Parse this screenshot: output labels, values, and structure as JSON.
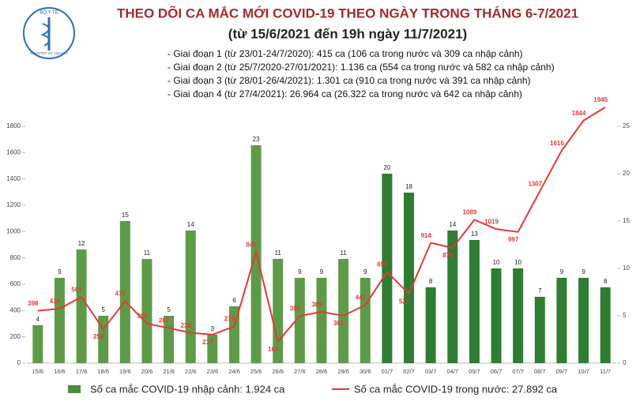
{
  "logo": {
    "top": "BỘ Y TẾ",
    "bottom": "MINISTRY OF HEALTH"
  },
  "chart_data": {
    "type": "bar-line",
    "title": "THEO DÕI CA MẮC MỚI COVID-19 THEO NGÀY TRONG THÁNG 6-7/2021",
    "subtitle": "(từ 15/6/2021 đến 19h ngày 11/7/2021)",
    "notes": [
      "- Giai đoạn 1 (từ 23/01-24/7/2020): 415 ca (106 ca trong nước và 309 ca nhập cảnh)",
      "- Giai đoạn 2 (từ 25/7/2020-27/01/2021): 1.136 ca (554 ca trong nước và 582 ca nhập cảnh)",
      "- Giai đoạn 3 (từ 28/01-26/4/2021): 1.301 ca (910 ca trong nước và 391 ca nhập cảnh)",
      "- Giai đoạn 4 (từ 27/4/2021): 26.964 ca (26.322 ca trong nước và 642 ca nhập cảnh)"
    ],
    "categories": [
      "15/6",
      "16/6",
      "17/6",
      "18/6",
      "19/6",
      "20/6",
      "21/6",
      "22/6",
      "23/6",
      "24/6",
      "25/6",
      "26/6",
      "27/6",
      "28/6",
      "29/6",
      "30/6",
      "01/7",
      "02/7",
      "03/7",
      "04/7",
      "05/7",
      "06/7",
      "07/7",
      "08/7",
      "09/7",
      "10/7",
      "11/7"
    ],
    "series": [
      {
        "name": "Số ca mắc COVID-19 nhập cảnh: 1.924 ca",
        "type": "bar",
        "axis": "y2",
        "color": "#4e8f3a",
        "colors": [
          "#5d9b49",
          "#5d9b49",
          "#5d9b49",
          "#5d9b49",
          "#5d9b49",
          "#5d9b49",
          "#5d9b49",
          "#5d9b49",
          "#5d9b49",
          "#5d9b49",
          "#5d9b49",
          "#5d9b49",
          "#5d9b49",
          "#5d9b49",
          "#5d9b49",
          "#5d9b49",
          "#2e7d32",
          "#2e7d32",
          "#2e7d32",
          "#2e7d32",
          "#2e7d32",
          "#2e7d32",
          "#2e7d32",
          "#2e7d32",
          "#2e7d32",
          "#2e7d32",
          "#2e7d32"
        ],
        "values": [
          4,
          9,
          12,
          5,
          15,
          11,
          5,
          14,
          3,
          6,
          23,
          11,
          9,
          9,
          11,
          9,
          20,
          18,
          8,
          14,
          13,
          10,
          10,
          7,
          9,
          9,
          8
        ]
      },
      {
        "name": "Số ca mắc COVID-19 trong nước: 27.892 ca",
        "type": "line",
        "axis": "y",
        "color": "#e53935",
        "values": [
          398,
          414,
          503,
          259,
          471,
          300,
          267,
          230,
          217,
          279,
          845,
          164,
          359,
          389,
          361,
          441,
          693,
          527,
          914,
          876,
          1089,
          1019,
          997,
          1307,
          1616,
          1844,
          1945
        ]
      }
    ],
    "ylim": [
      0,
      1800
    ],
    "yticks": [
      0,
      200,
      400,
      600,
      800,
      1000,
      1200,
      1400,
      1600,
      1800
    ],
    "y2lim": [
      0,
      25
    ],
    "y2ticks": [
      0,
      5,
      10,
      15,
      20,
      25
    ],
    "grid": false
  }
}
